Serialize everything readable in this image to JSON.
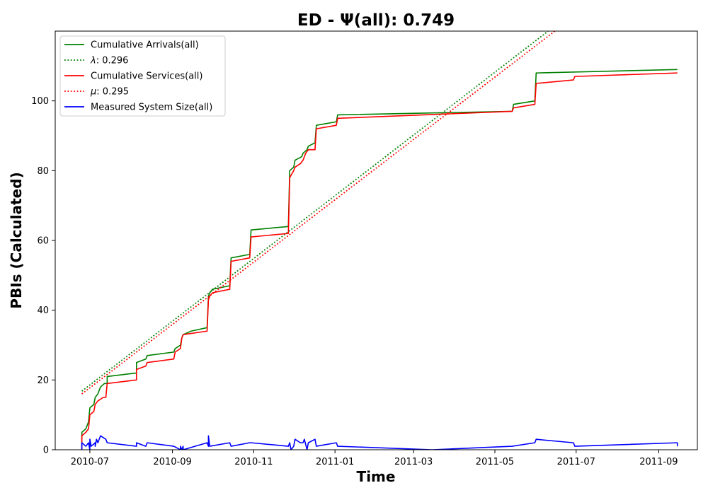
{
  "chart_data": {
    "type": "line",
    "title": "ED -  Ψ(all): 0.749",
    "xlabel": "Time",
    "ylabel": "PBIs (Calculated)",
    "xlim": [
      "2010-06-05",
      "2011-09-30"
    ],
    "ylim": [
      0,
      120
    ],
    "x_ticks": [
      "2010-07",
      "2010-09",
      "2010-11",
      "2011-01",
      "2011-03",
      "2011-05",
      "2011-07",
      "2011-09"
    ],
    "y_ticks": [
      0,
      20,
      40,
      60,
      80,
      100
    ],
    "grid": false,
    "legend_position": "top-left",
    "series": [
      {
        "name": "Cumulative Arrivals(all)",
        "color": "#008000",
        "style": "solid",
        "points": [
          [
            "2010-06-25",
            0
          ],
          [
            "2010-06-25",
            5
          ],
          [
            "2010-06-28",
            6
          ],
          [
            "2010-06-29",
            7
          ],
          [
            "2010-06-30",
            8
          ],
          [
            "2010-07-01",
            12
          ],
          [
            "2010-07-04",
            13
          ],
          [
            "2010-07-05",
            15
          ],
          [
            "2010-07-07",
            16
          ],
          [
            "2010-07-09",
            18
          ],
          [
            "2010-07-12",
            19
          ],
          [
            "2010-07-14",
            19
          ],
          [
            "2010-07-14",
            21
          ],
          [
            "2010-08-05",
            22
          ],
          [
            "2010-08-05",
            25
          ],
          [
            "2010-08-12",
            26
          ],
          [
            "2010-08-13",
            27
          ],
          [
            "2010-09-02",
            28
          ],
          [
            "2010-09-03",
            29
          ],
          [
            "2010-09-07",
            30
          ],
          [
            "2010-09-08",
            32
          ],
          [
            "2010-09-09",
            33
          ],
          [
            "2010-09-15",
            34
          ],
          [
            "2010-09-27",
            35
          ],
          [
            "2010-09-28",
            44
          ],
          [
            "2010-09-29",
            45
          ],
          [
            "2010-10-01",
            46
          ],
          [
            "2010-10-14",
            47
          ],
          [
            "2010-10-15",
            55
          ],
          [
            "2010-10-29",
            56
          ],
          [
            "2010-10-30",
            63
          ],
          [
            "2010-11-27",
            64
          ],
          [
            "2010-11-28",
            80
          ],
          [
            "2010-12-01",
            81
          ],
          [
            "2010-12-02",
            83
          ],
          [
            "2010-12-07",
            84
          ],
          [
            "2010-12-08",
            85
          ],
          [
            "2010-12-11",
            86
          ],
          [
            "2010-12-12",
            87
          ],
          [
            "2010-12-17",
            88
          ],
          [
            "2010-12-18",
            93
          ],
          [
            "2011-01-02",
            94
          ],
          [
            "2011-01-03",
            96
          ],
          [
            "2011-05-14",
            97
          ],
          [
            "2011-05-15",
            99
          ],
          [
            "2011-05-31",
            100
          ],
          [
            "2011-06-01",
            108
          ],
          [
            "2011-09-15",
            109
          ]
        ]
      },
      {
        "name": "λ: 0.296",
        "legend_prefix": "λ",
        "legend_value": ": 0.296",
        "color": "#008000",
        "style": "dotted",
        "points": [
          [
            "2010-06-25",
            16.8
          ],
          [
            "2011-06-10",
            120
          ]
        ]
      },
      {
        "name": "Cumulative Services(all)",
        "color": "#ff0000",
        "style": "solid",
        "points": [
          [
            "2010-06-25",
            0
          ],
          [
            "2010-06-25",
            4
          ],
          [
            "2010-06-28",
            5
          ],
          [
            "2010-06-30",
            6
          ],
          [
            "2010-07-01",
            10
          ],
          [
            "2010-07-04",
            11
          ],
          [
            "2010-07-05",
            13
          ],
          [
            "2010-07-07",
            14
          ],
          [
            "2010-07-11",
            15
          ],
          [
            "2010-07-13",
            15
          ],
          [
            "2010-07-14",
            19
          ],
          [
            "2010-08-05",
            20
          ],
          [
            "2010-08-05",
            23
          ],
          [
            "2010-08-12",
            24
          ],
          [
            "2010-08-13",
            25
          ],
          [
            "2010-09-02",
            26
          ],
          [
            "2010-09-03",
            28
          ],
          [
            "2010-09-07",
            29
          ],
          [
            "2010-09-08",
            32
          ],
          [
            "2010-09-09",
            33
          ],
          [
            "2010-09-27",
            34
          ],
          [
            "2010-09-28",
            43
          ],
          [
            "2010-09-29",
            44
          ],
          [
            "2010-10-01",
            45
          ],
          [
            "2010-10-14",
            46
          ],
          [
            "2010-10-15",
            54
          ],
          [
            "2010-10-29",
            55
          ],
          [
            "2010-10-30",
            61
          ],
          [
            "2010-11-27",
            62
          ],
          [
            "2010-11-28",
            78
          ],
          [
            "2010-12-01",
            80
          ],
          [
            "2010-12-02",
            81
          ],
          [
            "2010-12-06",
            82
          ],
          [
            "2010-12-08",
            83
          ],
          [
            "2010-12-10",
            85
          ],
          [
            "2010-12-12",
            86
          ],
          [
            "2010-12-17",
            86
          ],
          [
            "2010-12-18",
            92
          ],
          [
            "2011-01-02",
            93
          ],
          [
            "2011-01-03",
            95
          ],
          [
            "2011-05-14",
            97
          ],
          [
            "2011-05-15",
            98
          ],
          [
            "2011-05-31",
            99
          ],
          [
            "2011-06-01",
            105
          ],
          [
            "2011-06-29",
            106
          ],
          [
            "2011-06-30",
            107
          ],
          [
            "2011-09-15",
            108
          ]
        ]
      },
      {
        "name": "μ: 0.295",
        "legend_prefix": "μ",
        "legend_value": ": 0.295",
        "color": "#ff0000",
        "style": "dotted",
        "points": [
          [
            "2010-06-25",
            16.0
          ],
          [
            "2011-06-15",
            120
          ]
        ]
      },
      {
        "name": "Measured System Size(all)",
        "color": "#0000ff",
        "style": "solid",
        "points": [
          [
            "2010-06-25",
            0
          ],
          [
            "2010-06-25",
            2
          ],
          [
            "2010-06-28",
            1
          ],
          [
            "2010-06-30",
            2
          ],
          [
            "2010-07-01",
            0
          ],
          [
            "2010-07-01",
            3
          ],
          [
            "2010-07-02",
            1
          ],
          [
            "2010-07-05",
            2
          ],
          [
            "2010-07-05",
            1
          ],
          [
            "2010-07-06",
            3
          ],
          [
            "2010-07-07",
            2
          ],
          [
            "2010-07-09",
            4
          ],
          [
            "2010-07-13",
            3
          ],
          [
            "2010-07-14",
            2
          ],
          [
            "2010-08-05",
            1
          ],
          [
            "2010-08-05",
            2
          ],
          [
            "2010-08-12",
            1
          ],
          [
            "2010-08-13",
            2
          ],
          [
            "2010-09-02",
            1
          ],
          [
            "2010-09-07",
            0
          ],
          [
            "2010-09-07",
            1
          ],
          [
            "2010-09-08",
            0
          ],
          [
            "2010-09-09",
            1
          ],
          [
            "2010-09-09",
            0
          ],
          [
            "2010-09-27",
            2
          ],
          [
            "2010-09-28",
            1
          ],
          [
            "2010-09-28",
            4
          ],
          [
            "2010-09-29",
            1
          ],
          [
            "2010-10-14",
            2
          ],
          [
            "2010-10-15",
            1
          ],
          [
            "2010-10-29",
            2
          ],
          [
            "2010-10-30",
            2
          ],
          [
            "2010-11-27",
            1
          ],
          [
            "2010-11-28",
            2
          ],
          [
            "2010-11-29",
            0
          ],
          [
            "2010-12-01",
            1
          ],
          [
            "2010-12-02",
            3
          ],
          [
            "2010-12-06",
            2
          ],
          [
            "2010-12-08",
            2
          ],
          [
            "2010-12-09",
            3
          ],
          [
            "2010-12-11",
            0
          ],
          [
            "2010-12-12",
            2
          ],
          [
            "2010-12-17",
            3
          ],
          [
            "2010-12-18",
            1
          ],
          [
            "2011-01-02",
            2
          ],
          [
            "2011-01-03",
            1
          ],
          [
            "2011-03-15",
            0
          ],
          [
            "2011-05-14",
            1
          ],
          [
            "2011-05-31",
            2
          ],
          [
            "2011-06-01",
            3
          ],
          [
            "2011-06-29",
            2
          ],
          [
            "2011-06-30",
            1
          ],
          [
            "2011-09-15",
            2
          ],
          [
            "2011-09-15",
            1
          ]
        ]
      }
    ]
  }
}
